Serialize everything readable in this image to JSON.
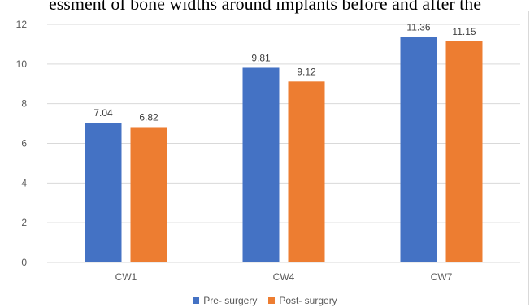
{
  "header": {
    "title": "essment of bone widths around implants before and after the"
  },
  "chart_data": {
    "type": "bar",
    "categories": [
      "CW1",
      "CW4",
      "CW7"
    ],
    "series": [
      {
        "name": "Pre- surgery",
        "values": [
          7.04,
          9.81,
          11.36
        ],
        "color": "#4472c4"
      },
      {
        "name": "Post- surgery",
        "values": [
          6.82,
          9.12,
          11.15
        ],
        "color": "#ed7d31"
      }
    ],
    "ylim": [
      0,
      12
    ],
    "yticks": [
      0,
      2,
      4,
      6,
      8,
      10,
      12
    ],
    "grid": true,
    "legend": "bottom"
  }
}
